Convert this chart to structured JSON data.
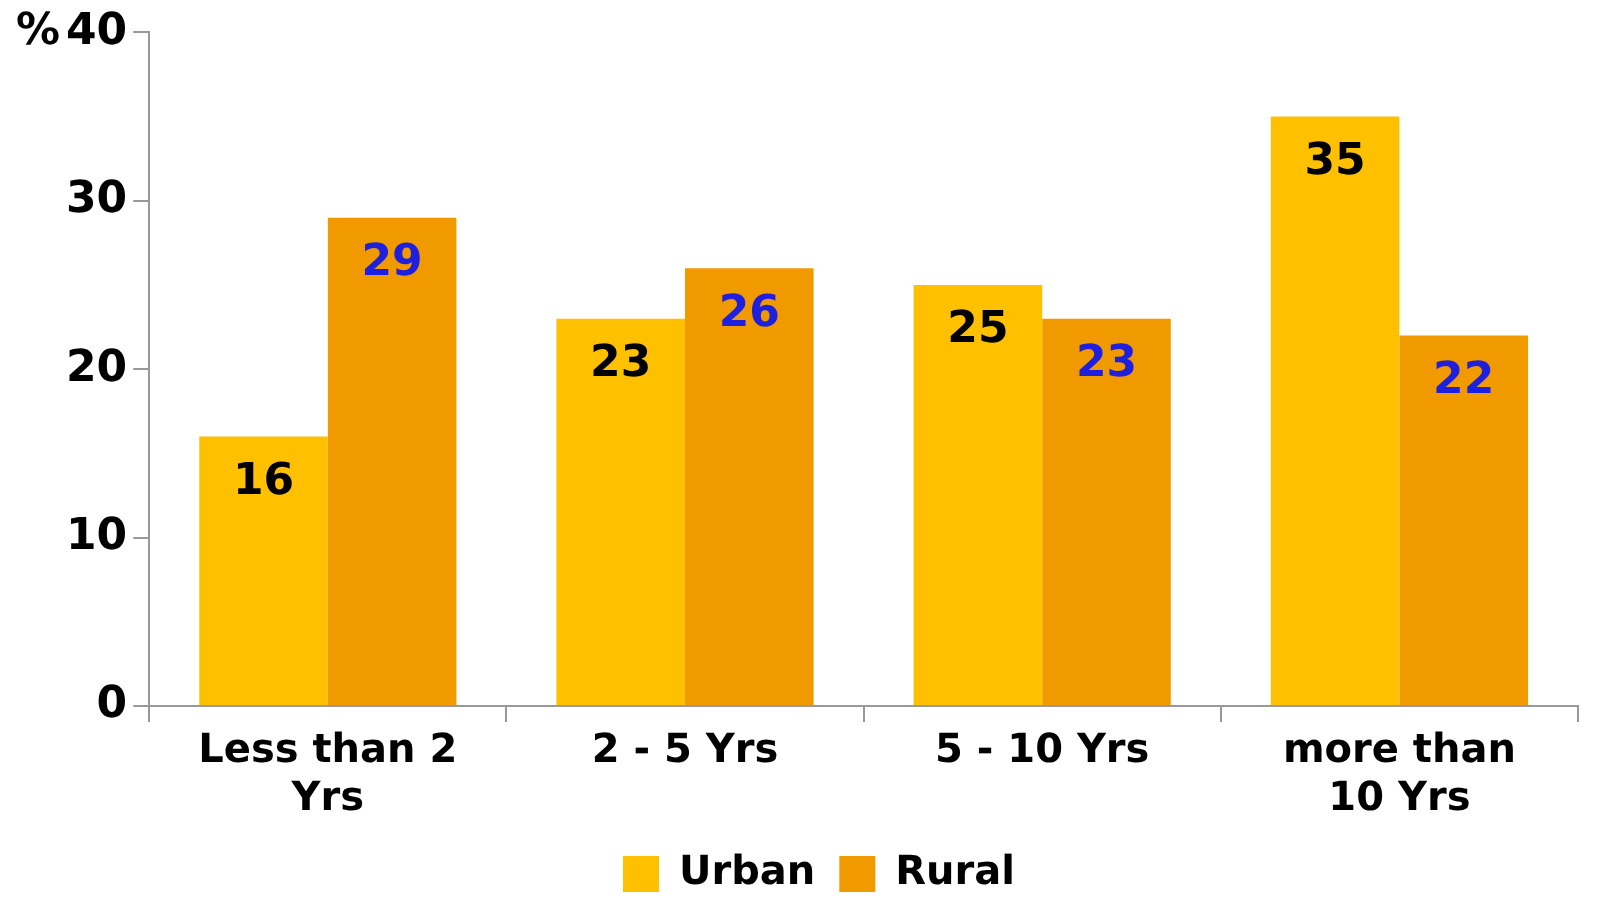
{
  "chart_data": {
    "type": "bar",
    "ylabel": "%",
    "categories": [
      "Less than 2 Yrs",
      "2 - 5 Yrs",
      "5 - 10 Yrs",
      "more than 10 Yrs"
    ],
    "series": [
      {
        "name": "Urban",
        "color": "#ffc000",
        "values": [
          16,
          23,
          25,
          35
        ]
      },
      {
        "name": "Rural",
        "color": "#f09a00",
        "values": [
          29,
          26,
          23,
          22
        ]
      }
    ],
    "ylim": [
      0,
      40
    ],
    "yticks": [
      0,
      10,
      20,
      30,
      40
    ],
    "grid": false,
    "legend": "bottom",
    "data_labels": true
  }
}
